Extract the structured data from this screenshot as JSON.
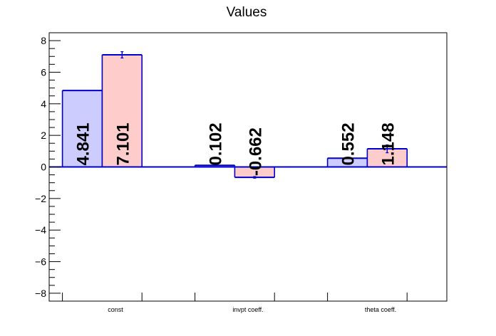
{
  "chart_data": {
    "type": "bar",
    "title": "Values",
    "xlabel": "",
    "ylabel": "",
    "categories": [
      "const",
      "invpt coeff.",
      "theta coeff."
    ],
    "series": [
      {
        "values": [
          4.841,
          0.102,
          0.552
        ],
        "labels": [
          "4.841",
          "0.102",
          "0.552"
        ],
        "errors": [
          0,
          0,
          0
        ],
        "color": "#ccccff"
      },
      {
        "values": [
          7.101,
          -0.662,
          1.148
        ],
        "labels": [
          "7.101",
          "-0.662",
          "1.148"
        ],
        "errors": [
          0.2,
          0.05,
          0.25
        ],
        "color": "#ffcccc"
      }
    ],
    "ylim": [
      -8.5,
      8.5
    ],
    "yticks": [
      -8,
      -6,
      -4,
      -2,
      0,
      2,
      4,
      6,
      8
    ],
    "ytick_labels": [
      "−8",
      "−6",
      "−4",
      "−2",
      "0",
      "2",
      "4",
      "6",
      "8"
    ],
    "bar_outline_color": "#0000cc",
    "grid": false,
    "legend": "none"
  }
}
